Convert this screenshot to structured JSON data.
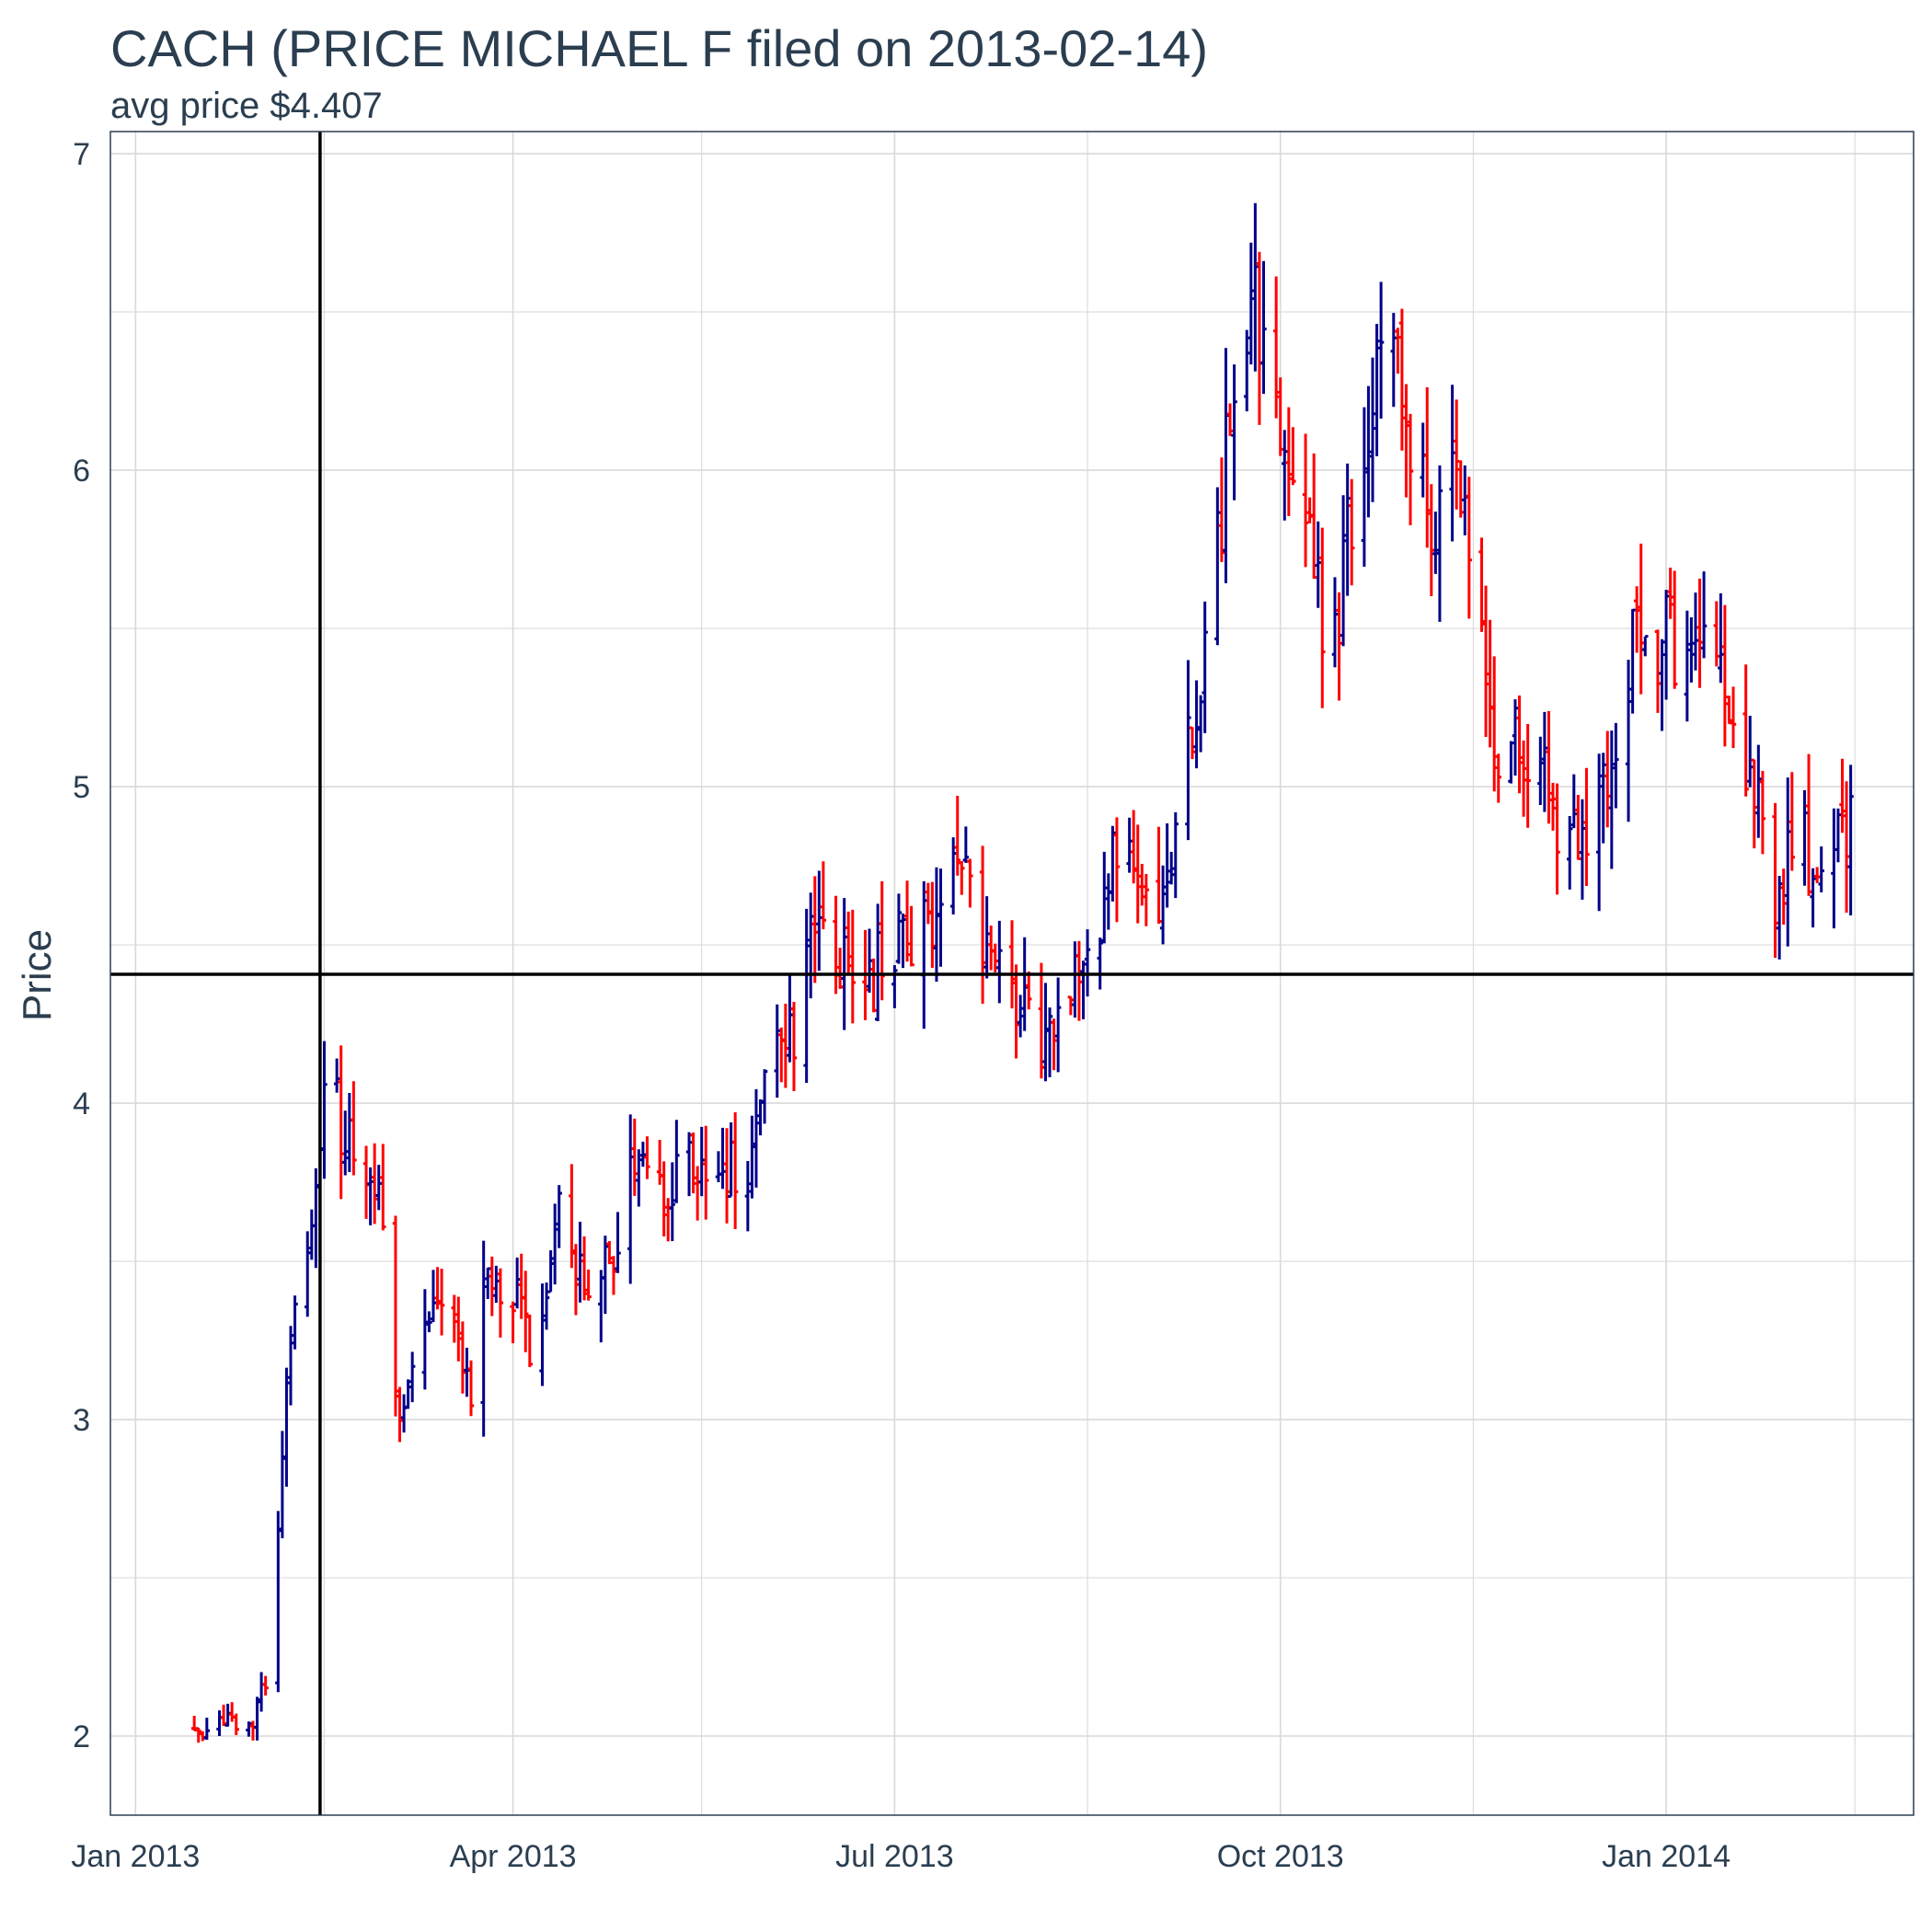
{
  "chart_data": {
    "type": "ohlc",
    "title": "CACH (PRICE MICHAEL F filed on 2013-02-14)",
    "subtitle": "avg price $4.407",
    "xlabel": "",
    "ylabel": "Price",
    "x_ticks": [
      {
        "label": "Jan 2013",
        "date": "2013-01-01"
      },
      {
        "label": "Apr 2013",
        "date": "2013-04-01"
      },
      {
        "label": "Jul 2013",
        "date": "2013-07-01"
      },
      {
        "label": "Oct 2013",
        "date": "2013-10-01"
      },
      {
        "label": "Jan 2014",
        "date": "2014-01-01"
      }
    ],
    "y_ticks": [
      2,
      3,
      4,
      5,
      6,
      7
    ],
    "xlim": [
      "2012-12-26",
      "2014-03-01"
    ],
    "ylim": [
      1.75,
      7.07
    ],
    "grid": true,
    "colors": {
      "up": "#00008b",
      "down": "#ff0000",
      "reference": "#000000",
      "grid": "#d9d9d9",
      "text": "#2b3e50"
    },
    "reference_lines": {
      "vertical_date": "2013-02-14",
      "horizontal_value": 4.407
    },
    "anchors": [
      [
        "2013-01-15",
        2.02
      ],
      [
        "2013-01-22",
        2.04
      ],
      [
        "2013-01-29",
        2.04
      ],
      [
        "2013-02-02",
        2.22
      ],
      [
        "2013-02-06",
        3.2
      ],
      [
        "2013-02-11",
        3.48
      ],
      [
        "2013-02-15",
        4.06
      ],
      [
        "2013-02-21",
        3.88
      ],
      [
        "2013-02-28",
        3.65
      ],
      [
        "2013-03-05",
        3.02
      ],
      [
        "2013-03-12",
        3.3
      ],
      [
        "2013-03-18",
        3.35
      ],
      [
        "2013-03-22",
        3.05
      ],
      [
        "2013-03-26",
        3.48
      ],
      [
        "2013-03-31",
        3.45
      ],
      [
        "2013-04-06",
        3.18
      ],
      [
        "2013-04-12",
        3.75
      ],
      [
        "2013-04-18",
        3.4
      ],
      [
        "2013-04-25",
        3.5
      ],
      [
        "2013-05-01",
        3.85
      ],
      [
        "2013-05-07",
        3.7
      ],
      [
        "2013-05-13",
        3.85
      ],
      [
        "2013-05-20",
        3.72
      ],
      [
        "2013-05-27",
        3.85
      ],
      [
        "2013-06-02",
        4.12
      ],
      [
        "2013-06-08",
        4.28
      ],
      [
        "2013-06-14",
        4.7
      ],
      [
        "2013-06-20",
        4.38
      ],
      [
        "2013-06-26",
        4.4
      ],
      [
        "2013-07-02",
        4.52
      ],
      [
        "2013-07-08",
        4.55
      ],
      [
        "2013-07-15",
        4.78
      ],
      [
        "2013-07-22",
        4.52
      ],
      [
        "2013-07-29",
        4.38
      ],
      [
        "2013-08-05",
        4.18
      ],
      [
        "2013-08-12",
        4.42
      ],
      [
        "2013-08-18",
        4.48
      ],
      [
        "2013-08-24",
        4.85
      ],
      [
        "2013-08-30",
        4.55
      ],
      [
        "2013-09-05",
        4.82
      ],
      [
        "2013-09-11",
        5.25
      ],
      [
        "2013-09-15",
        5.6
      ],
      [
        "2013-09-19",
        6.15
      ],
      [
        "2013-09-24",
        6.55
      ],
      [
        "2013-09-28",
        6.38
      ],
      [
        "2013-10-03",
        5.95
      ],
      [
        "2013-10-08",
        5.7
      ],
      [
        "2013-10-13",
        5.4
      ],
      [
        "2013-10-18",
        5.85
      ],
      [
        "2013-10-23",
        6.3
      ],
      [
        "2013-10-28",
        6.45
      ],
      [
        "2013-11-02",
        5.95
      ],
      [
        "2013-11-07",
        5.85
      ],
      [
        "2013-11-12",
        5.95
      ],
      [
        "2013-11-17",
        5.6
      ],
      [
        "2013-11-22",
        5.1
      ],
      [
        "2013-11-27",
        5.2
      ],
      [
        "2013-12-02",
        5.08
      ],
      [
        "2013-12-07",
        4.85
      ],
      [
        "2013-12-12",
        4.82
      ],
      [
        "2013-12-17",
        5.05
      ],
      [
        "2013-12-22",
        5.35
      ],
      [
        "2013-12-27",
        5.5
      ],
      [
        "2014-01-02",
        5.45
      ],
      [
        "2014-01-07",
        5.45
      ],
      [
        "2014-01-12",
        5.6
      ],
      [
        "2014-01-17",
        5.2
      ],
      [
        "2014-01-22",
        4.95
      ],
      [
        "2014-01-27",
        4.68
      ],
      [
        "2014-02-01",
        4.78
      ],
      [
        "2014-02-06",
        4.8
      ],
      [
        "2014-02-11",
        4.85
      ],
      [
        "2014-02-16",
        4.85
      ]
    ],
    "series": []
  }
}
